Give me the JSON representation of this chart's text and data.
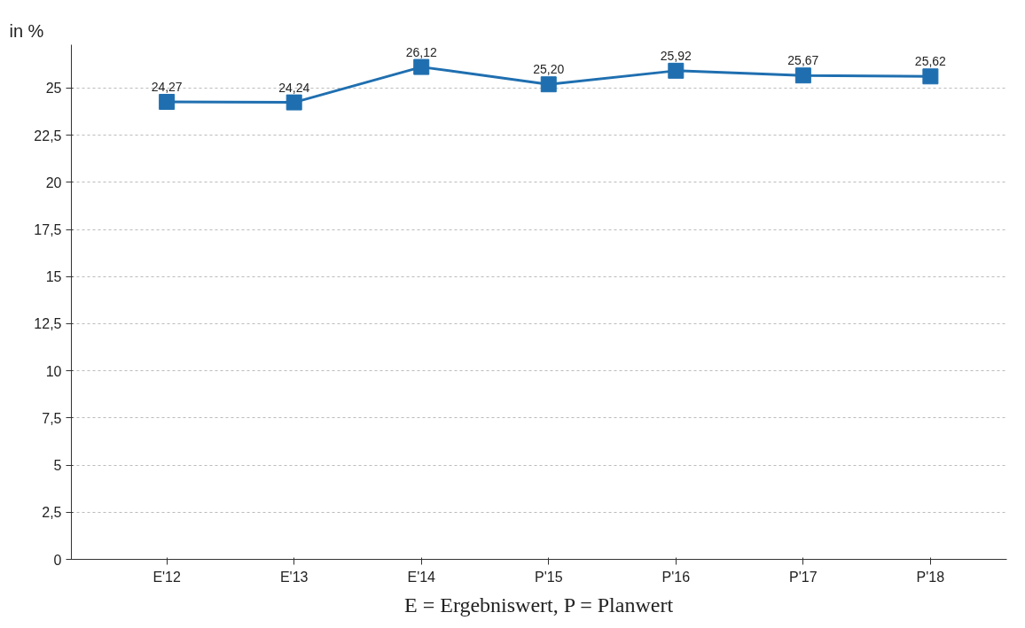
{
  "chart_data": {
    "type": "line",
    "ylabel": "in %",
    "categories": [
      "E'12",
      "E'13",
      "E'14",
      "P'15",
      "P'16",
      "P'17",
      "P'18"
    ],
    "series": [
      {
        "color": "#1f6fb0",
        "values": [
          24.27,
          24.24,
          26.12,
          25.2,
          25.92,
          25.67,
          25.62
        ],
        "value_labels": [
          "24,27",
          "24,24",
          "26,12",
          "25,20",
          "25,92",
          "25,67",
          "25,62"
        ]
      }
    ],
    "ylim": [
      0,
      27.3
    ],
    "yticks": [
      0,
      {
        "value": 2.5,
        "label": "2,5"
      },
      5,
      {
        "value": 7.5,
        "label": "7,5"
      },
      10,
      {
        "value": 12.5,
        "label": "12,5"
      },
      15,
      {
        "value": 17.5,
        "label": "17,5"
      },
      20,
      {
        "value": 22.5,
        "label": "22,5"
      },
      25
    ],
    "grid": "y",
    "marker": "square",
    "line_style": "solid",
    "annotations": [
      "E = Ergebniswert, P = Planwert"
    ]
  }
}
